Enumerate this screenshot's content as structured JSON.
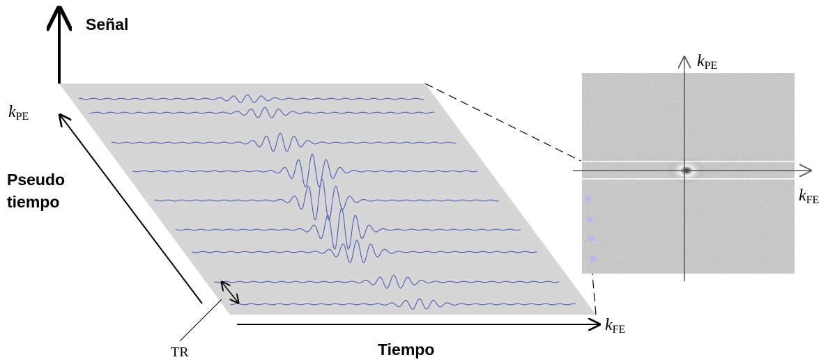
{
  "signal_axis": {
    "label": "Señal"
  },
  "pseudo_time_axis": {
    "symbol": "k",
    "subscript": "PE",
    "label_lines": [
      "Pseudo",
      "tiempo"
    ]
  },
  "time_axis": {
    "label": "Tiempo",
    "symbol": "k",
    "subscript": "FE"
  },
  "tr_label": "TR",
  "kspace": {
    "vertical_axis": {
      "symbol": "k",
      "subscript": "PE"
    },
    "horizontal_axis": {
      "symbol": "k",
      "subscript": "FE"
    }
  }
}
